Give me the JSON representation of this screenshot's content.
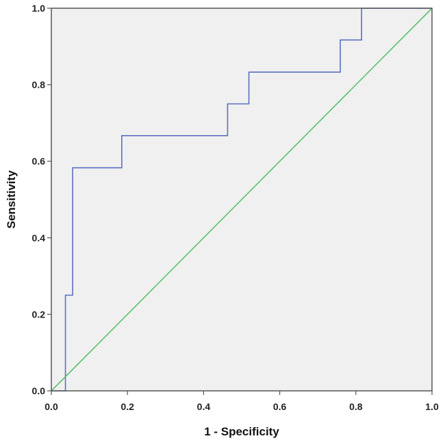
{
  "chart_data": {
    "type": "line",
    "title": "",
    "xlabel": "1 - Specificity",
    "ylabel": "Sensitivity",
    "xlim": [
      0.0,
      1.0
    ],
    "ylim": [
      0.0,
      1.0
    ],
    "xticks": [
      "0.0",
      "0.2",
      "0.4",
      "0.6",
      "0.8",
      "1.0"
    ],
    "yticks": [
      "0.0",
      "0.2",
      "0.4",
      "0.6",
      "0.8",
      "1.0"
    ],
    "grid": false,
    "legend": "none",
    "background_color": "#f0f0f0",
    "series": [
      {
        "color": "#5b6fbf",
        "x": [
          0.0,
          0.037,
          0.037,
          0.056,
          0.056,
          0.185,
          0.185,
          0.463,
          0.463,
          0.519,
          0.519,
          0.759,
          0.759,
          0.815,
          0.815,
          1.0
        ],
        "y": [
          0.0,
          0.0,
          0.25,
          0.25,
          0.583,
          0.583,
          0.667,
          0.667,
          0.75,
          0.75,
          0.833,
          0.833,
          0.917,
          0.917,
          1.0,
          1.0
        ]
      },
      {
        "color": "#5cc26e",
        "x": [
          0.0,
          1.0
        ],
        "y": [
          0.0,
          1.0
        ]
      }
    ]
  }
}
